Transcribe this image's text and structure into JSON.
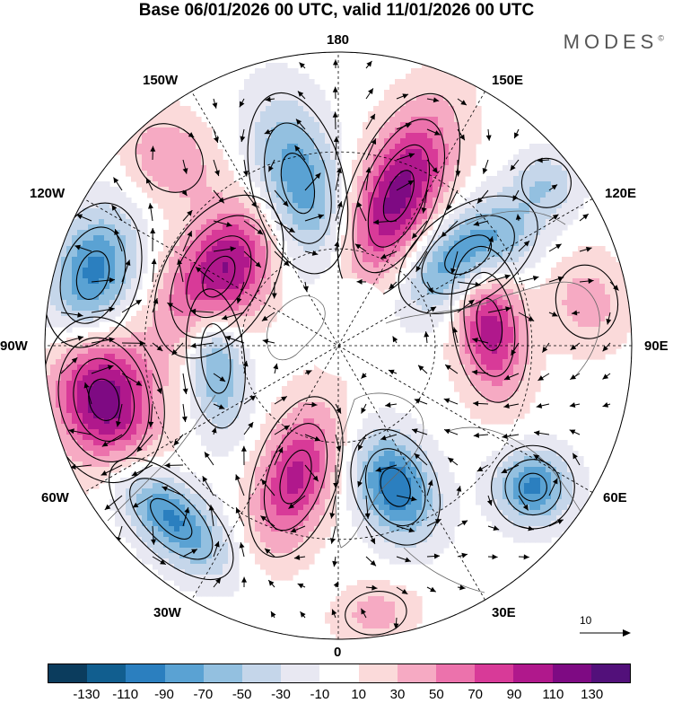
{
  "title": "Base 06/01/2026 00 UTC, valid 11/01/2026 00 UTC",
  "brand": "MODES",
  "brand_mark": "©",
  "longitude_labels": {
    "top": "180",
    "bottom": "0",
    "left": "90W",
    "right": "90E",
    "upper_left": "150W",
    "upper_right": "150E",
    "mid_left": "120W",
    "mid_right": "120E",
    "lower_left": "60W",
    "lower_right": "60E",
    "bottom_left": "30W",
    "bottom_right": "30E"
  },
  "reference_vector": {
    "label": "10"
  },
  "colorbar": {
    "colors": [
      "#0b3c5d",
      "#115e8f",
      "#2b7fbf",
      "#5aa2d3",
      "#93c0e0",
      "#c5d6ea",
      "#e8e8f2",
      "#ffffff",
      "#fbdada",
      "#f6aac3",
      "#ec72ac",
      "#d83a98",
      "#b0188c",
      "#7e0a83",
      "#52107a"
    ],
    "tick_labels": [
      "-130",
      "-110",
      "-90",
      "-70",
      "-50",
      "-30",
      "-10",
      "10",
      "30",
      "50",
      "70",
      "90",
      "110",
      "130"
    ]
  },
  "anomaly_centers": [
    {
      "lon": 158,
      "colat": 0.55,
      "value": 120,
      "sx": 0.1,
      "sy": 0.22
    },
    {
      "lon": 194,
      "colat": 0.57,
      "value": -90,
      "sx": 0.1,
      "sy": 0.2
    },
    {
      "lon": 222,
      "colat": 0.86,
      "value": 50,
      "sx": 0.1,
      "sy": 0.12
    },
    {
      "lon": 240,
      "colat": 0.47,
      "value": 125,
      "sx": 0.18,
      "sy": 0.11
    },
    {
      "lon": 254,
      "colat": 0.87,
      "value": -100,
      "sx": 0.16,
      "sy": 0.1
    },
    {
      "lon": 276,
      "colat": 0.42,
      "value": -85,
      "sx": 0.17,
      "sy": 0.07
    },
    {
      "lon": 283,
      "colat": 0.82,
      "value": 125,
      "sx": 0.17,
      "sy": 0.12
    },
    {
      "lon": 316,
      "colat": 0.82,
      "value": -95,
      "sx": 0.17,
      "sy": 0.08
    },
    {
      "lon": 342,
      "colat": 0.47,
      "value": 95,
      "sx": 0.09,
      "sy": 0.18
    },
    {
      "lon": 22,
      "colat": 0.52,
      "value": -110,
      "sx": 0.09,
      "sy": 0.13
    },
    {
      "lon": 54,
      "colat": 0.82,
      "value": -95,
      "sx": 0.09,
      "sy": 0.09
    },
    {
      "lon": 98,
      "colat": 0.52,
      "value": 105,
      "sx": 0.17,
      "sy": 0.08
    },
    {
      "lon": 100,
      "colat": 0.86,
      "value": 40,
      "sx": 0.12,
      "sy": 0.1
    },
    {
      "lon": 125,
      "colat": 0.54,
      "value": -110,
      "sx": 0.1,
      "sy": 0.17
    },
    {
      "lon": 128,
      "colat": 0.9,
      "value": -40,
      "sx": 0.08,
      "sy": 0.08
    },
    {
      "lon": 8,
      "colat": 0.92,
      "value": 40,
      "sx": 0.1,
      "sy": 0.07
    }
  ]
}
